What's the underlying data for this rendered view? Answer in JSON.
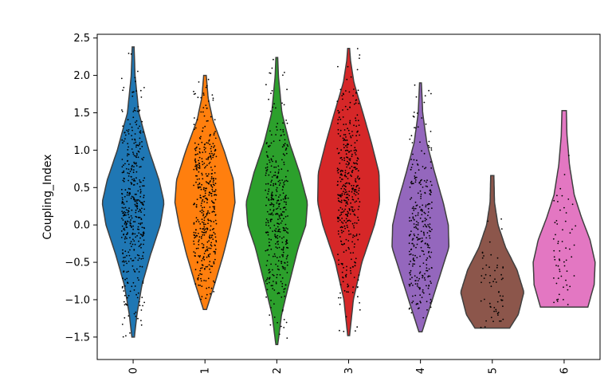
{
  "chart_data": {
    "type": "violin",
    "ylabel": "Coupling_Index",
    "xlabel": "",
    "ylim": [
      -1.8,
      2.55
    ],
    "yticks": [
      -1.5,
      -1.0,
      -0.5,
      0.0,
      0.5,
      1.0,
      1.5,
      2.0,
      2.5
    ],
    "ytick_labels": [
      "−1.5",
      "−1.0",
      "−0.5",
      "0.0",
      "0.5",
      "1.0",
      "1.5",
      "2.0",
      "2.5"
    ],
    "grid": false,
    "legend": "none",
    "categories": [
      "0",
      "1",
      "2",
      "3",
      "4",
      "5",
      "6"
    ],
    "series": [
      {
        "category": "0",
        "color": "#1f77b4",
        "min": -1.5,
        "max": 2.38,
        "n_points": 420,
        "profile": [
          [
            -1.5,
            0.04
          ],
          [
            -1.2,
            0.12
          ],
          [
            -0.8,
            0.28
          ],
          [
            -0.4,
            0.55
          ],
          [
            0.0,
            0.86
          ],
          [
            0.3,
            0.98
          ],
          [
            0.6,
            0.82
          ],
          [
            1.0,
            0.5
          ],
          [
            1.5,
            0.18
          ],
          [
            2.0,
            0.06
          ],
          [
            2.38,
            0.03
          ]
        ]
      },
      {
        "category": "1",
        "color": "#ff7f0e",
        "min": -1.13,
        "max": 2.0,
        "n_points": 420,
        "profile": [
          [
            -1.13,
            0.05
          ],
          [
            -0.8,
            0.3
          ],
          [
            -0.4,
            0.58
          ],
          [
            0.0,
            0.82
          ],
          [
            0.3,
            0.95
          ],
          [
            0.6,
            0.9
          ],
          [
            1.0,
            0.6
          ],
          [
            1.4,
            0.25
          ],
          [
            1.7,
            0.1
          ],
          [
            2.0,
            0.04
          ]
        ]
      },
      {
        "category": "2",
        "color": "#2ca02c",
        "min": -1.6,
        "max": 2.24,
        "n_points": 380,
        "profile": [
          [
            -1.6,
            0.03
          ],
          [
            -1.2,
            0.15
          ],
          [
            -0.8,
            0.38
          ],
          [
            -0.3,
            0.68
          ],
          [
            0.0,
            0.92
          ],
          [
            0.3,
            0.97
          ],
          [
            0.7,
            0.72
          ],
          [
            1.1,
            0.4
          ],
          [
            1.5,
            0.16
          ],
          [
            2.0,
            0.05
          ],
          [
            2.24,
            0.03
          ]
        ]
      },
      {
        "category": "3",
        "color": "#d62728",
        "min": -1.48,
        "max": 2.36,
        "n_points": 400,
        "profile": [
          [
            -1.48,
            0.03
          ],
          [
            -1.0,
            0.15
          ],
          [
            -0.5,
            0.42
          ],
          [
            0.0,
            0.82
          ],
          [
            0.3,
            0.98
          ],
          [
            0.7,
            0.96
          ],
          [
            1.1,
            0.72
          ],
          [
            1.5,
            0.45
          ],
          [
            1.9,
            0.17
          ],
          [
            2.2,
            0.06
          ],
          [
            2.36,
            0.03
          ]
        ]
      },
      {
        "category": "4",
        "color": "#9467bd",
        "min": -1.43,
        "max": 1.9,
        "n_points": 300,
        "profile": [
          [
            -1.43,
            0.05
          ],
          [
            -1.1,
            0.3
          ],
          [
            -0.7,
            0.6
          ],
          [
            -0.3,
            0.9
          ],
          [
            0.0,
            0.88
          ],
          [
            0.3,
            0.72
          ],
          [
            0.7,
            0.45
          ],
          [
            1.1,
            0.2
          ],
          [
            1.5,
            0.07
          ],
          [
            1.9,
            0.03
          ]
        ]
      },
      {
        "category": "5",
        "color": "#8c564b",
        "min": -1.38,
        "max": 0.66,
        "n_points": 60,
        "profile": [
          [
            -1.38,
            0.55
          ],
          [
            -1.2,
            0.82
          ],
          [
            -0.9,
            1.0
          ],
          [
            -0.6,
            0.78
          ],
          [
            -0.3,
            0.42
          ],
          [
            0.0,
            0.18
          ],
          [
            0.3,
            0.07
          ],
          [
            0.66,
            0.05
          ]
        ]
      },
      {
        "category": "6",
        "color": "#e377c2",
        "min": -1.1,
        "max": 1.53,
        "n_points": 60,
        "profile": [
          [
            -1.1,
            0.75
          ],
          [
            -0.8,
            0.95
          ],
          [
            -0.5,
            0.98
          ],
          [
            -0.2,
            0.82
          ],
          [
            0.1,
            0.55
          ],
          [
            0.4,
            0.32
          ],
          [
            0.8,
            0.17
          ],
          [
            1.2,
            0.09
          ],
          [
            1.53,
            0.07
          ]
        ]
      }
    ]
  }
}
